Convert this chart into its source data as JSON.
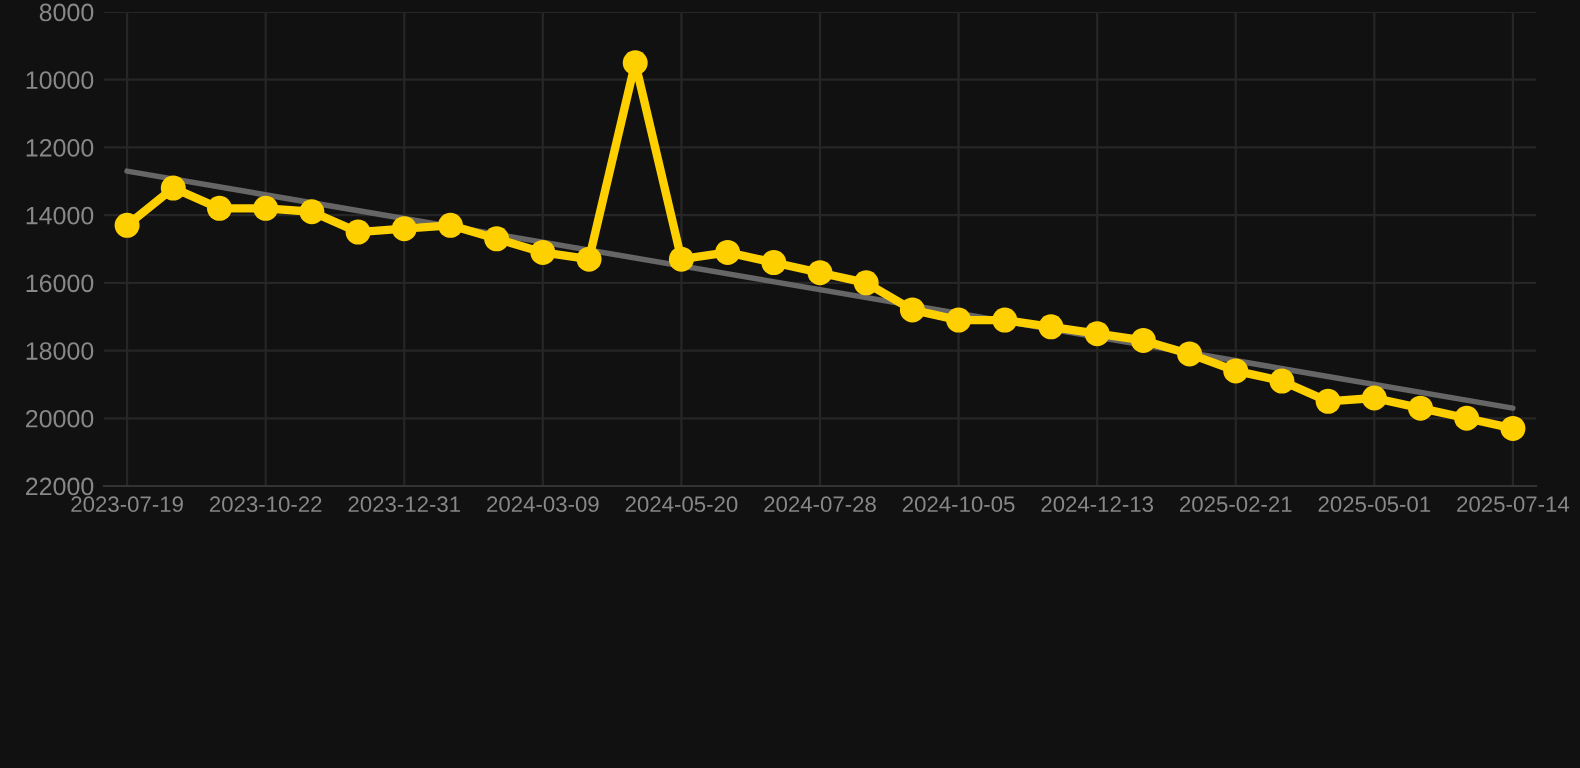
{
  "chart_data": {
    "type": "line",
    "categories": [
      "2023-07-19",
      null,
      null,
      "2023-10-22",
      null,
      null,
      "2023-12-31",
      null,
      null,
      "2024-03-09",
      null,
      null,
      "2024-05-20",
      null,
      null,
      "2024-07-28",
      null,
      null,
      "2024-10-05",
      null,
      null,
      "2024-12-13",
      null,
      null,
      "2025-02-21",
      null,
      null,
      "2025-05-01",
      null,
      null,
      "2025-07-14"
    ],
    "series": [
      {
        "color": "#ffd000",
        "marker": "circle",
        "values": [
          14300,
          13200,
          13800,
          13800,
          13900,
          14500,
          14400,
          14300,
          14700,
          15100,
          15300,
          9500,
          15300,
          15100,
          15400,
          15700,
          16000,
          16800,
          17100,
          17100,
          17300,
          17500,
          17700,
          18100,
          18600,
          18900,
          19500,
          19400,
          19700,
          20000,
          20300
        ]
      },
      {
        "type": "line",
        "color": "#666666",
        "marker": "none",
        "values": [
          12700,
          null,
          null,
          null,
          null,
          null,
          null,
          null,
          null,
          null,
          null,
          null,
          null,
          null,
          null,
          null,
          null,
          null,
          null,
          null,
          null,
          null,
          null,
          null,
          null,
          null,
          null,
          null,
          null,
          null,
          19700
        ]
      }
    ],
    "ylim": [
      22000,
      8000
    ],
    "yticks": [
      8000,
      10000,
      12000,
      14000,
      16000,
      18000,
      20000,
      22000
    ],
    "grid": true
  }
}
